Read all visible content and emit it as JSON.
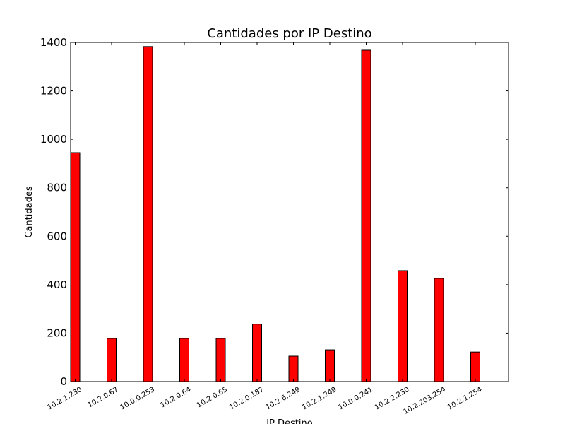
{
  "chart_data": {
    "type": "bar",
    "title": "Cantidades por IP Destino",
    "xlabel": "IP Destino",
    "ylabel": "Cantidades",
    "categories": [
      "10.2.1.230",
      "10.2.0.67",
      "10.0.0.253",
      "10.2.0.64",
      "10.2.0.65",
      "10.2.0.187",
      "10.2.6.249",
      "10.2.1.249",
      "10.0.0.241",
      "10.2.2.230",
      "10.2.203.254",
      "10.2.1.254"
    ],
    "values": [
      945,
      178,
      1383,
      178,
      178,
      237,
      105,
      131,
      1368,
      458,
      426,
      122
    ],
    "ylim": [
      0,
      1400
    ],
    "yticks": [
      0,
      200,
      400,
      600,
      800,
      1000,
      1200,
      1400
    ],
    "grid": false,
    "bar_color": "#ff0000",
    "edge_color": "#000000"
  }
}
